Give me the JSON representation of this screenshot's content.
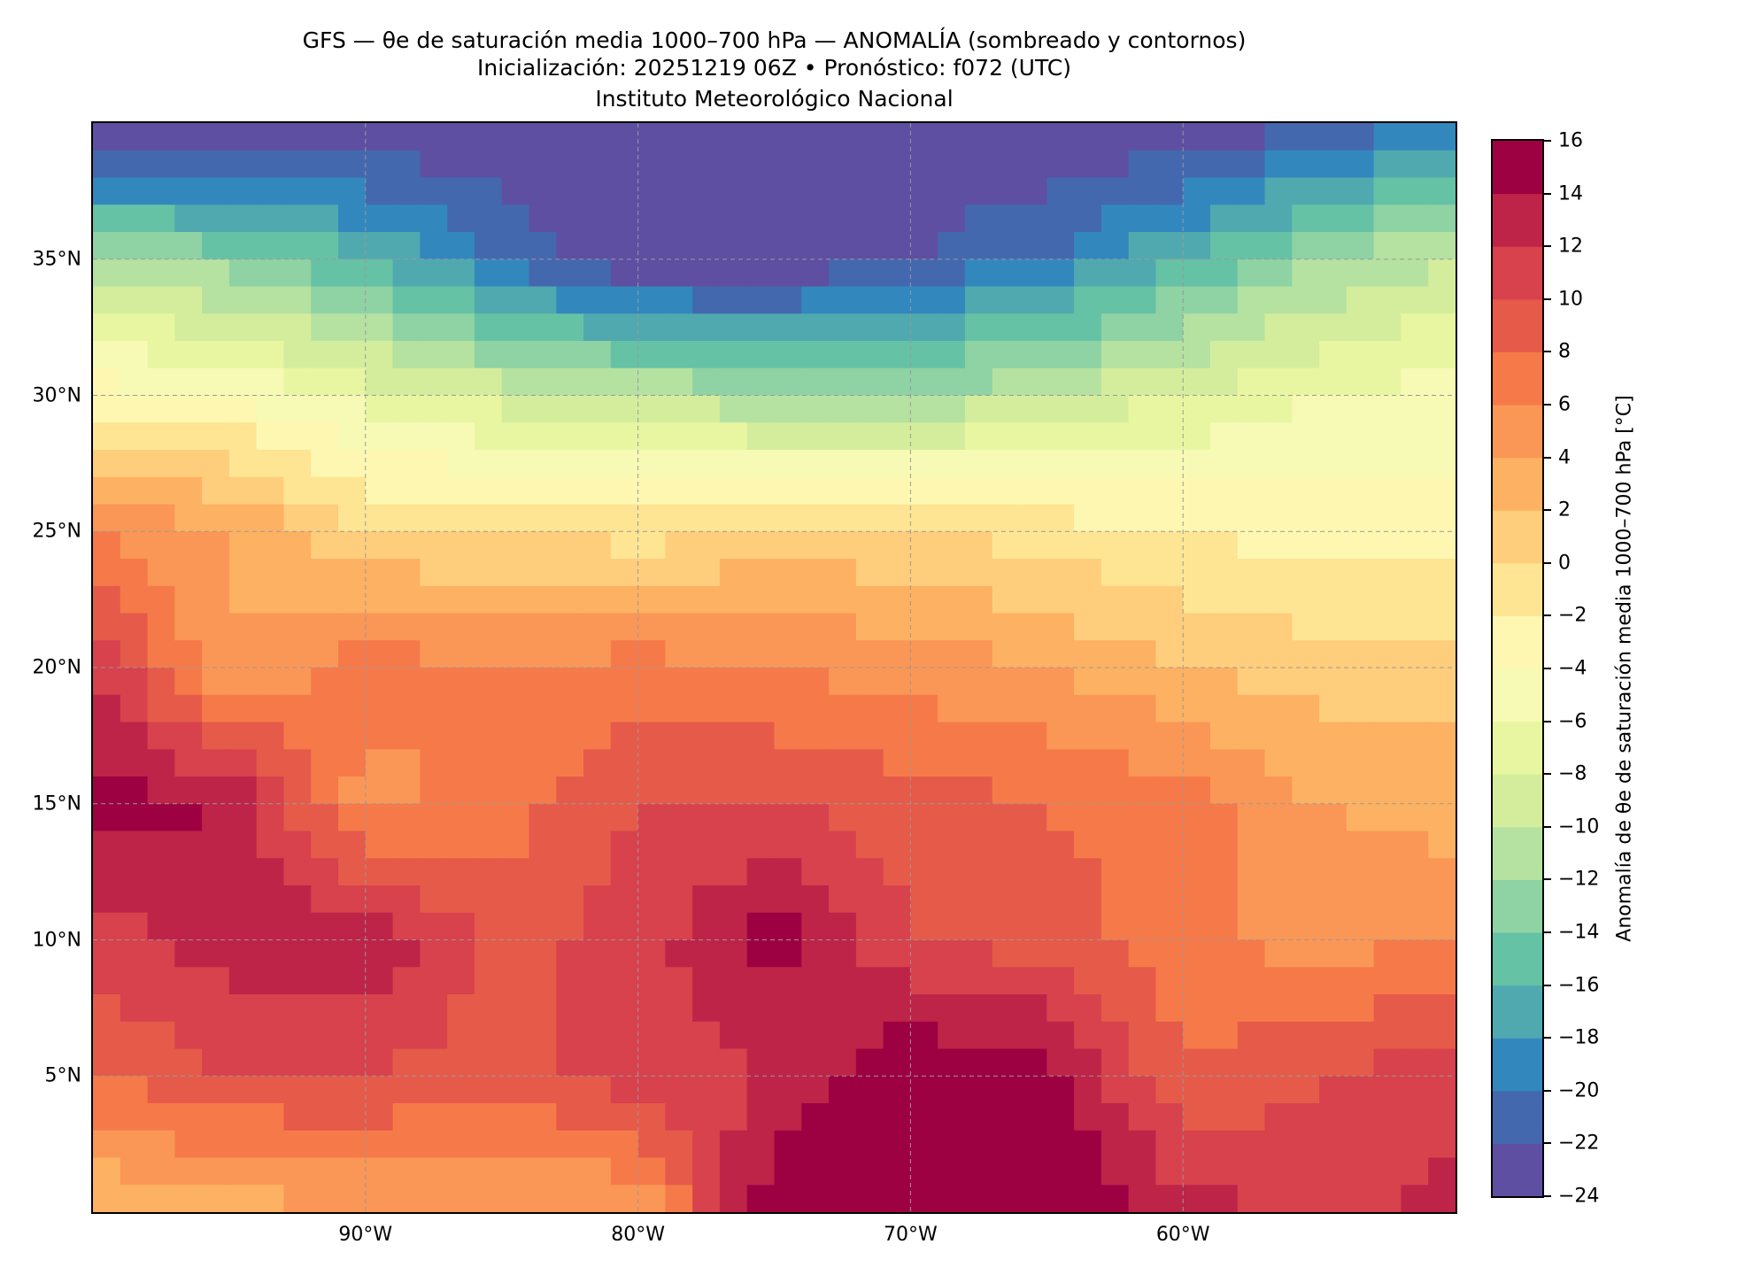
{
  "title": {
    "line1": "GFS — θe de saturación media 1000–700 hPa — ANOMALÍA (sombreado y contornos)",
    "line2": "Inicialización: 20251219 06Z   •   Pronóstico: f072 (UTC)",
    "line3": "Instituto Meteorológico Nacional"
  },
  "chart_data": {
    "type": "heatmap",
    "title": "GFS — θe de saturación media 1000–700 hPa — ANOMALÍA (sombreado y contornos)",
    "lon_range": [
      -100,
      -50
    ],
    "lat_range": [
      0,
      40
    ],
    "x_ticks": [
      {
        "value": -90,
        "label": "90°W"
      },
      {
        "value": -80,
        "label": "80°W"
      },
      {
        "value": -70,
        "label": "70°W"
      },
      {
        "value": -60,
        "label": "60°W"
      }
    ],
    "y_ticks": [
      {
        "value": 35,
        "label": "35°N"
      },
      {
        "value": 30,
        "label": "30°N"
      },
      {
        "value": 25,
        "label": "25°N"
      },
      {
        "value": 20,
        "label": "20°N"
      },
      {
        "value": 15,
        "label": "15°N"
      },
      {
        "value": 10,
        "label": "10°N"
      },
      {
        "value": 5,
        "label": "5°N"
      }
    ],
    "grid": true,
    "grid_lons": [
      -100,
      -95,
      -90,
      -85,
      -80,
      -75,
      -70,
      -65,
      -60,
      -55,
      -50
    ],
    "grid_lats": [
      40,
      35,
      30,
      25,
      20,
      15,
      10,
      5,
      0
    ],
    "values": [
      [
        -24,
        -24,
        -24,
        -24,
        -24,
        -24,
        -24,
        -24,
        -24,
        -22,
        -20
      ],
      [
        -12,
        -13,
        -16,
        -20,
        -24,
        -24,
        -22,
        -20,
        -16,
        -12,
        -10
      ],
      [
        -3,
        -4,
        -7,
        -9,
        -10,
        -12,
        -12,
        -10,
        -8,
        -6,
        -5
      ],
      [
        6,
        4,
        0,
        0,
        -1,
        1,
        0,
        -1,
        -2,
        -3,
        -3
      ],
      [
        12,
        4,
        7,
        6,
        7,
        6,
        5,
        4,
        2,
        1,
        1
      ],
      [
        15,
        14,
        5,
        7,
        10,
        10,
        9,
        8,
        7,
        4,
        3
      ],
      [
        11,
        13,
        14,
        9,
        11,
        15,
        10,
        9,
        7,
        5,
        6
      ],
      [
        8,
        10,
        10,
        9,
        11,
        12,
        16,
        15,
        8,
        10,
        11
      ],
      [
        2,
        3,
        4,
        4,
        4,
        16,
        16,
        16,
        13,
        11,
        13
      ]
    ],
    "colorbar": {
      "label": "Anomalía de θe de saturación media 1000–700 hPa [°C]",
      "levels": [
        -24,
        -22,
        -20,
        -18,
        -16,
        -14,
        -12,
        -10,
        -8,
        -6,
        -4,
        -2,
        0,
        2,
        4,
        6,
        8,
        10,
        12,
        14,
        16
      ],
      "tick_labels": [
        "−24",
        "−22",
        "−20",
        "−18",
        "−16",
        "−14",
        "−12",
        "−10",
        "−8",
        "−6",
        "−4",
        "−2",
        "0",
        "2",
        "4",
        "6",
        "8",
        "10",
        "12",
        "14",
        "16"
      ],
      "colors": [
        "#5e4fa2",
        "#4468ae",
        "#3288bd",
        "#50a9af",
        "#66c2a5",
        "#8fd2a4",
        "#b5e2a1",
        "#d4ed9c",
        "#e9f6a1",
        "#f6fab4",
        "#fdf7b2",
        "#fee593",
        "#fece7c",
        "#fdb163",
        "#fa9756",
        "#f67a49",
        "#e65a4a",
        "#d7424c",
        "#be2448",
        "#9e0142"
      ]
    }
  }
}
